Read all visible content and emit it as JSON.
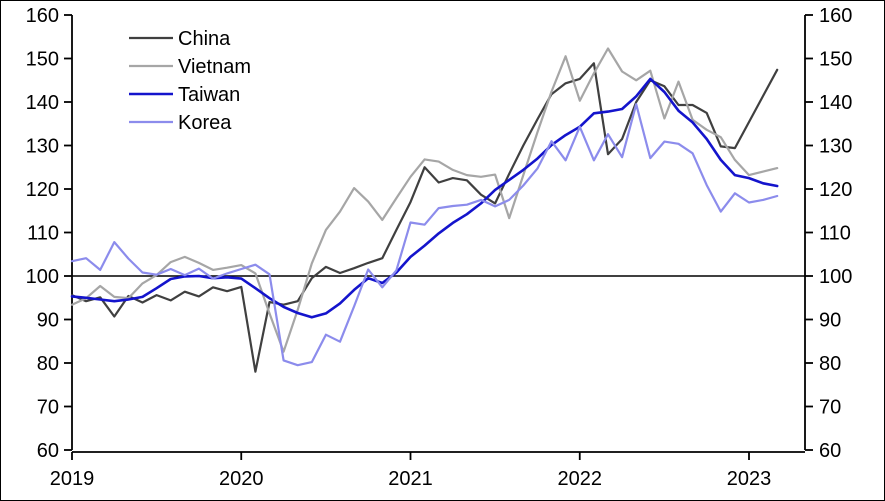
{
  "chart_data": {
    "type": "line",
    "title": "",
    "xlabel": "",
    "ylabel": "",
    "x_start": "2019-01",
    "x_end": "2023-03",
    "points_total": 51,
    "months_per_year_tick": 12,
    "x_tick_labels": [
      "2019",
      "2020",
      "2021",
      "2022",
      "2023"
    ],
    "ylim": [
      60,
      160
    ],
    "yticks": [
      60,
      70,
      80,
      90,
      100,
      110,
      120,
      130,
      140,
      150,
      160
    ],
    "dual_y_axis": true,
    "grid": false,
    "reference_line": 100,
    "axis_color": "#000000",
    "legend_position": "top-left-inside",
    "series": [
      {
        "name": "China",
        "color": "#404040",
        "width": 2.2,
        "values": [
          95.6,
          94.2,
          95.1,
          90.7,
          95.4,
          93.9,
          95.6,
          94.4,
          96.4,
          95.3,
          97.4,
          96.5,
          97.5,
          78.0,
          94.0,
          93.4,
          94.2,
          99.5,
          102.1,
          100.7,
          101.8,
          103.0,
          104.1,
          110.6,
          117.0,
          125.0,
          121.5,
          122.5,
          122.0,
          118.7,
          116.7,
          123.5,
          130.0,
          136.0,
          141.8,
          144.3,
          145.3,
          148.9,
          128.0,
          131.5,
          140.0,
          145.0,
          143.6,
          139.3,
          139.3,
          137.5,
          129.8,
          129.4,
          135.4,
          141.4,
          147.4
        ]
      },
      {
        "name": "Vietnam",
        "color": "#a6a6a6",
        "width": 2.2,
        "values": [
          93.4,
          94.9,
          97.7,
          95.2,
          94.9,
          98.3,
          100.2,
          103.2,
          104.4,
          103.0,
          101.4,
          101.9,
          102.5,
          100.6,
          91.4,
          82.6,
          92.2,
          102.9,
          110.6,
          114.8,
          120.2,
          117.1,
          112.9,
          117.9,
          122.8,
          126.8,
          126.3,
          124.4,
          123.2,
          122.8,
          123.3,
          113.3,
          123.2,
          133.0,
          142.4,
          150.5,
          140.3,
          146.6,
          152.3,
          147.0,
          145.0,
          147.2,
          136.2,
          144.7,
          135.9,
          133.6,
          131.9,
          126.7,
          123.2,
          124.0,
          124.8
        ]
      },
      {
        "name": "Taiwan",
        "color": "#1414cc",
        "width": 2.6,
        "values": [
          95.3,
          95.0,
          94.6,
          94.2,
          94.6,
          95.2,
          97.2,
          99.3,
          99.9,
          100.0,
          99.5,
          99.7,
          99.4,
          97.2,
          94.9,
          92.9,
          91.5,
          90.5,
          91.4,
          93.7,
          96.8,
          99.5,
          98.4,
          100.8,
          104.4,
          107.0,
          109.8,
          112.2,
          114.2,
          116.7,
          119.8,
          122.1,
          124.4,
          127.0,
          130.1,
          132.4,
          134.3,
          137.4,
          137.8,
          138.4,
          141.3,
          145.3,
          142.3,
          138.0,
          135.3,
          131.5,
          126.7,
          123.2,
          122.5,
          121.3,
          120.7
        ]
      },
      {
        "name": "Korea",
        "color": "#8c8cec",
        "width": 2.2,
        "values": [
          103.4,
          104.1,
          101.4,
          107.8,
          104.0,
          100.8,
          100.3,
          101.6,
          100.2,
          101.7,
          99.4,
          100.6,
          101.6,
          102.6,
          100.4,
          80.6,
          79.5,
          80.2,
          86.5,
          84.9,
          93.0,
          101.5,
          97.4,
          101.3,
          112.3,
          111.8,
          115.6,
          116.1,
          116.4,
          117.5,
          116.0,
          117.5,
          120.8,
          124.7,
          131.0,
          126.6,
          134.3,
          126.6,
          132.6,
          127.3,
          139.5,
          127.1,
          130.9,
          130.4,
          128.2,
          120.9,
          114.8,
          119.0,
          116.9,
          117.5,
          118.4
        ]
      }
    ]
  },
  "legend": {
    "entries": [
      "China",
      "Vietnam",
      "Taiwan",
      "Korea"
    ]
  }
}
